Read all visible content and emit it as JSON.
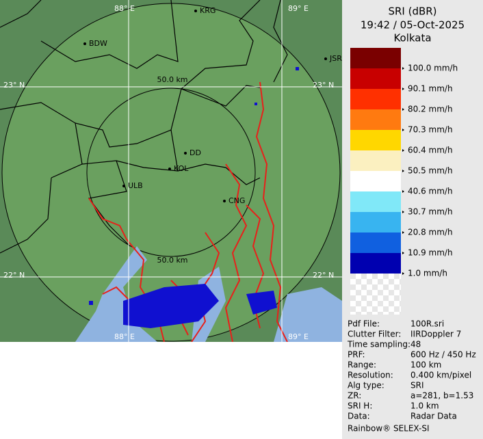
{
  "header": {
    "lines": [
      "SRI (dBR)",
      "19:42 / 05-Oct-2025",
      "Kolkata"
    ]
  },
  "legend": [
    {
      "color": "#7a0000",
      "label": "100.0 mm/h"
    },
    {
      "color": "#c80000",
      "label": "90.1 mm/h"
    },
    {
      "color": "#ff3000",
      "label": "80.2 mm/h"
    },
    {
      "color": "#ff7a10",
      "label": "70.3 mm/h"
    },
    {
      "color": "#ffd700",
      "label": "60.4 mm/h"
    },
    {
      "color": "#fbf0c0",
      "label": "50.5 mm/h"
    },
    {
      "color": "#ffffff",
      "label": "40.6 mm/h"
    },
    {
      "color": "#80e8f8",
      "label": "30.7 mm/h"
    },
    {
      "color": "#38b4f0",
      "label": "20.8 mm/h"
    },
    {
      "color": "#1060e0",
      "label": "10.9 mm/h"
    },
    {
      "color": "#0000b0",
      "label": "1.0 mm/h"
    }
  ],
  "info": [
    [
      "Pdf File:",
      "100R.sri"
    ],
    [
      "Clutter Filter:",
      "IIRDoppler 7"
    ],
    [
      "Time sampling:",
      "48"
    ],
    [
      "PRF:",
      "600 Hz / 450 Hz"
    ],
    [
      "Range:",
      "100 km"
    ],
    [
      "Resolution:",
      "0.400 km/pixel"
    ],
    [
      "Alg type:",
      "SRI"
    ],
    [
      "ZR:",
      "a=281, b=1.53"
    ],
    [
      "SRI H:",
      "1.0 km"
    ],
    [
      "Data:",
      "Radar Data"
    ]
  ],
  "footer": "Rainbow® SELEX-SI",
  "map": {
    "grid_labels": [
      "88° E",
      "89° E",
      "23° N",
      "23° N",
      "22° N",
      "22° N",
      "88° E",
      "89° E"
    ],
    "range_labels": [
      "50.0 km",
      "50.0 km"
    ],
    "cities": [
      "BDW",
      "KRG",
      "JSR",
      "DD",
      "KOL",
      "ULB",
      "CNG"
    ]
  }
}
